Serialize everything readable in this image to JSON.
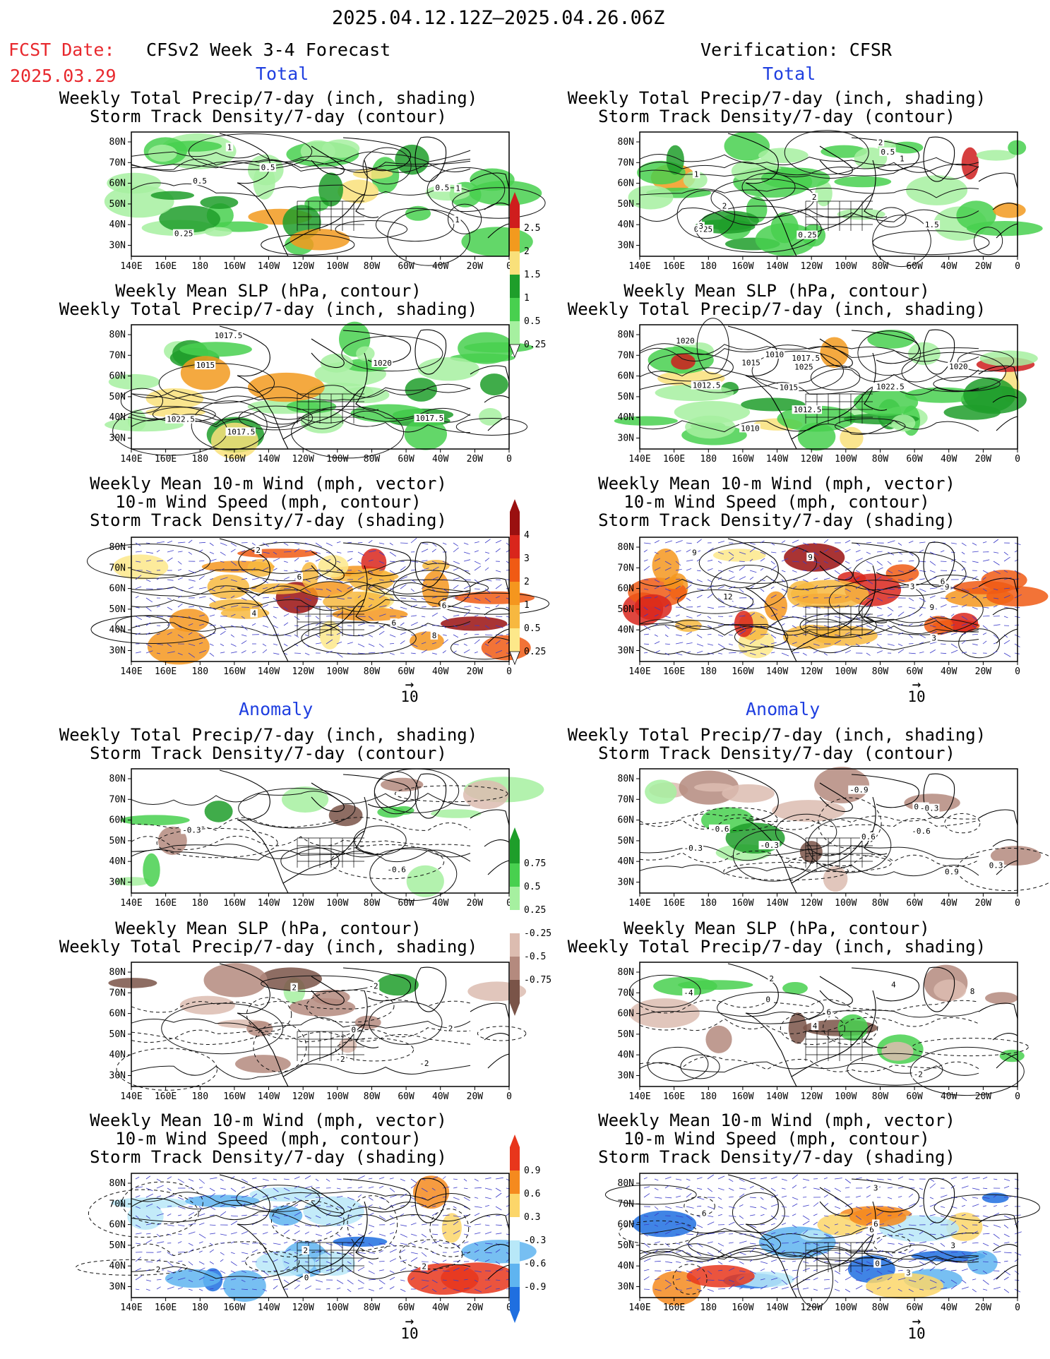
{
  "header": {
    "date_range": "2025.04.12.12Z–2025.04.26.06Z",
    "fcst_label": "FCST Date:",
    "fcst_date": "2025.03.29",
    "left_title": "CFSv2 Week 3-4 Forecast",
    "right_title": "Verification: CFSR"
  },
  "sections": {
    "total": "Total",
    "anomaly": "Anomaly"
  },
  "titles": {
    "precip_storm": [
      "Weekly Total Precip/7-day (inch, shading)",
      "Storm Track Density/7-day (contour)"
    ],
    "slp_precip": [
      "Weekly Mean SLP (hPa, contour)",
      "Weekly Total Precip/7-day (inch, shading)"
    ],
    "wind_storm": [
      "Weekly Mean 10-m Wind (mph, vector)",
      "10-m Wind Speed (mph, contour)",
      "Storm Track Density/7-day (shading)"
    ]
  },
  "axes": {
    "lat_labels": [
      "80N",
      "70N",
      "60N",
      "50N",
      "40N",
      "30N"
    ],
    "lon_labels": [
      "140E",
      "160E",
      "180",
      "160W",
      "140W",
      "120W",
      "100W",
      "80W",
      "60W",
      "40W",
      "20W",
      "0"
    ]
  },
  "vector_ref": {
    "arrow": "→",
    "value": "10"
  },
  "colorbars": [
    {
      "labels": [
        "2.5",
        "2",
        "1.5",
        "1",
        "0.5",
        "0.25"
      ],
      "colors": [
        "#cf1d1d",
        "#f29a1e",
        "#f9e07a",
        "#1e9e2a",
        "#48d04f",
        "#a6f0a0"
      ]
    },
    {
      "labels": [
        "4",
        "3",
        "2",
        "1",
        "0.5",
        "0.25"
      ],
      "colors": [
        "#9a1010",
        "#d9261c",
        "#f05a14",
        "#f5961e",
        "#f7b840",
        "#fde88a"
      ]
    },
    {
      "labels": [
        "0.75",
        "0.5",
        "0.25",
        "-0.25",
        "-0.5",
        "-0.75"
      ],
      "colors": [
        "#1e9e2a",
        "#48d04f",
        "#a6f0a0",
        "#ffffff",
        "#dcbcb0",
        "#b48a7e",
        "#7a5448"
      ]
    },
    {
      "labels": [
        "0.9",
        "0.6",
        "0.3",
        "-0.3",
        "-0.6",
        "-0.9"
      ],
      "colors": [
        "#e8361c",
        "#f58a1e",
        "#fcd66a",
        "#ffffff",
        "#b8e8f8",
        "#5fb4f0",
        "#1f6fe0"
      ]
    }
  ],
  "contour_labels": {
    "p1": [
      "0.5",
      "1",
      "1",
      "0.5",
      "0.25",
      "0.5",
      "1"
    ],
    "p2": [
      "0.25",
      "1.5",
      "2",
      "0.5",
      "1",
      "3",
      "2",
      "2",
      "1",
      "0.25"
    ],
    "p3": [
      "1022.5",
      "1017.5",
      "1015",
      "1017.5",
      "1020",
      "1017.5"
    ],
    "p4": [
      "1025",
      "1022.5",
      "1020",
      "1020",
      "1015",
      "1015",
      "1010",
      "1012.5",
      "1017.5",
      "1010",
      "1012.5",
      "1022.5"
    ],
    "p5": [
      "6",
      "4",
      "2",
      "6",
      "6",
      "8"
    ],
    "p6": [
      "9",
      "6",
      "3",
      "3",
      "9",
      "9",
      "12",
      "9"
    ],
    "p7": [
      "-0.6",
      "-0.3"
    ],
    "p8": [
      "-0.3",
      "-0.6",
      "0.9",
      "0.6",
      "0.3",
      "-0.6",
      "-0.9",
      "0.9",
      "-0.3",
      "-0.3"
    ],
    "p9": [
      "-2",
      "2",
      "0",
      "-2",
      "2",
      "-2"
    ],
    "p10": [
      "6",
      "4",
      "2",
      "4",
      "-2",
      "0",
      "-4",
      "8"
    ],
    "p11": [
      "2",
      "2",
      "0",
      "2"
    ],
    "p12": [
      "3",
      "3",
      "3",
      "0",
      "6",
      "6",
      "6"
    ]
  }
}
